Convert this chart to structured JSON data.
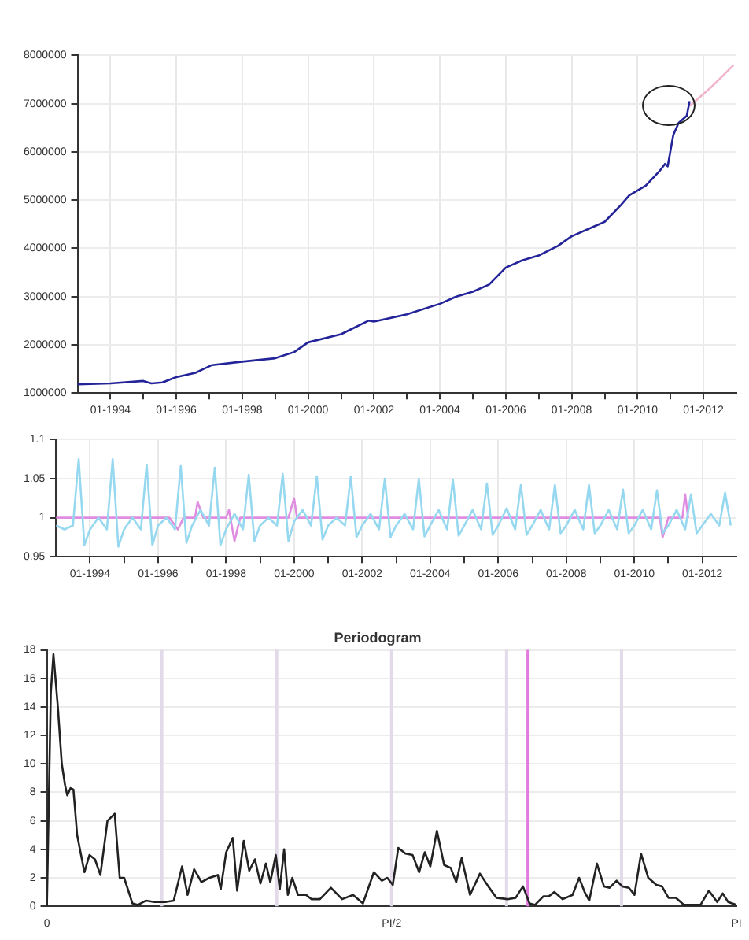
{
  "chart_data": [
    {
      "type": "line",
      "xlim": [
        "1993-01",
        "2013-01"
      ],
      "ylim": [
        1000000,
        8000000
      ],
      "grid": true,
      "xticks": [
        {
          "value": "1994-01",
          "label": "01-1994"
        },
        {
          "value": "1995-01",
          "label": null
        },
        {
          "value": "1996-01",
          "label": "01-1996"
        },
        {
          "value": "1997-01",
          "label": null
        },
        {
          "value": "1998-01",
          "label": "01-1998"
        },
        {
          "value": "1999-01",
          "label": null
        },
        {
          "value": "2000-01",
          "label": "01-2000"
        },
        {
          "value": "2001-01",
          "label": null
        },
        {
          "value": "2002-01",
          "label": "01-2002"
        },
        {
          "value": "2003-01",
          "label": null
        },
        {
          "value": "2004-01",
          "label": "01-2004"
        },
        {
          "value": "2005-01",
          "label": null
        },
        {
          "value": "2006-01",
          "label": "01-2006"
        },
        {
          "value": "2007-01",
          "label": null
        },
        {
          "value": "2008-01",
          "label": "01-2008"
        },
        {
          "value": "2009-01",
          "label": null
        },
        {
          "value": "2010-01",
          "label": "01-2010"
        },
        {
          "value": "2011-01",
          "label": null
        },
        {
          "value": "2012-01",
          "label": "01-2012"
        }
      ],
      "yticks": [
        1000000,
        2000000,
        3000000,
        4000000,
        5000000,
        6000000,
        7000000,
        8000000
      ],
      "series": [
        {
          "color": "#24249a",
          "x": [
            "1993-01",
            "1994-01",
            "1995-01",
            "1995-04",
            "1995-08",
            "1996-01",
            "1996-08",
            "1997-02",
            "1998-01",
            "1999-01",
            "1999-08",
            "2000-01",
            "2001-01",
            "2001-11",
            "2002-01",
            "2003-01",
            "2004-01",
            "2004-07",
            "2005-01",
            "2005-07",
            "2006-01",
            "2006-07",
            "2007-01",
            "2007-08",
            "2008-01",
            "2009-01",
            "2009-07",
            "2009-10",
            "2010-04",
            "2010-09",
            "2010-11",
            "2010-12",
            "2011-02",
            "2011-04",
            "2011-07",
            "2011-08"
          ],
          "values": [
            1180000,
            1200000,
            1250000,
            1200000,
            1220000,
            1330000,
            1420000,
            1580000,
            1650000,
            1720000,
            1850000,
            2050000,
            2220000,
            2500000,
            2480000,
            2630000,
            2850000,
            3000000,
            3100000,
            3250000,
            3600000,
            3750000,
            3850000,
            4050000,
            4250000,
            4550000,
            4900000,
            5100000,
            5300000,
            5600000,
            5750000,
            5700000,
            6350000,
            6600000,
            6750000,
            7050000
          ]
        },
        {
          "color": "#f0b4cc",
          "x": [
            "2011-08",
            "2012-04",
            "2012-12"
          ],
          "values": [
            6950000,
            7350000,
            7800000
          ]
        }
      ]
    },
    {
      "type": "line",
      "xlim": [
        "1993-01",
        "2013-01"
      ],
      "ylim": [
        0.95,
        1.1
      ],
      "grid": true,
      "xticks": [
        {
          "value": "1994-01",
          "label": "01-1994"
        },
        {
          "value": "1995-01",
          "label": null
        },
        {
          "value": "1996-01",
          "label": "01-1996"
        },
        {
          "value": "1997-01",
          "label": null
        },
        {
          "value": "1998-01",
          "label": "01-1998"
        },
        {
          "value": "1999-01",
          "label": null
        },
        {
          "value": "2000-01",
          "label": "01-2000"
        },
        {
          "value": "2001-01",
          "label": null
        },
        {
          "value": "2002-01",
          "label": "01-2002"
        },
        {
          "value": "2003-01",
          "label": null
        },
        {
          "value": "2004-01",
          "label": "01-2004"
        },
        {
          "value": "2005-01",
          "label": null
        },
        {
          "value": "2006-01",
          "label": "01-2006"
        },
        {
          "value": "2007-01",
          "label": null
        },
        {
          "value": "2008-01",
          "label": "01-2008"
        },
        {
          "value": "2009-01",
          "label": null
        },
        {
          "value": "2010-01",
          "label": "01-2010"
        },
        {
          "value": "2011-01",
          "label": null
        },
        {
          "value": "2012-01",
          "label": "01-2012"
        }
      ],
      "yticks": [
        0.95,
        1,
        1.05,
        1.1
      ],
      "series": [
        {
          "color": "#96d8f0",
          "x": [
            "1993-01",
            "1993-04",
            "1993-07",
            "1993-09",
            "1993-11",
            "1994-01",
            "1994-04",
            "1994-07",
            "1994-09",
            "1994-11",
            "1995-01",
            "1995-04",
            "1995-07",
            "1995-09",
            "1995-11",
            "1996-01",
            "1996-04",
            "1996-07",
            "1996-09",
            "1996-11",
            "1997-01",
            "1997-04",
            "1997-07",
            "1997-09",
            "1997-11",
            "1998-01",
            "1998-04",
            "1998-07",
            "1998-09",
            "1998-11",
            "1999-01",
            "1999-04",
            "1999-07",
            "1999-09",
            "1999-11",
            "2000-01",
            "2000-04",
            "2000-07",
            "2000-09",
            "2000-11",
            "2001-01",
            "2001-04",
            "2001-07",
            "2001-09",
            "2001-11",
            "2002-01",
            "2002-04",
            "2002-07",
            "2002-09",
            "2002-11",
            "2003-01",
            "2003-04",
            "2003-07",
            "2003-09",
            "2003-11",
            "2004-01",
            "2004-04",
            "2004-07",
            "2004-09",
            "2004-11",
            "2005-01",
            "2005-04",
            "2005-07",
            "2005-09",
            "2005-11",
            "2006-01",
            "2006-04",
            "2006-07",
            "2006-09",
            "2006-11",
            "2007-01",
            "2007-04",
            "2007-07",
            "2007-09",
            "2007-11",
            "2008-01",
            "2008-04",
            "2008-07",
            "2008-09",
            "2008-11",
            "2009-01",
            "2009-04",
            "2009-07",
            "2009-09",
            "2009-11",
            "2010-01",
            "2010-04",
            "2010-07",
            "2010-09",
            "2010-11",
            "2011-01",
            "2011-04",
            "2011-07",
            "2011-09",
            "2011-11",
            "2012-01",
            "2012-04",
            "2012-07",
            "2012-09",
            "2012-11"
          ],
          "values": [
            0.99,
            0.985,
            0.99,
            1.075,
            0.965,
            0.985,
            1.0,
            0.985,
            1.075,
            0.963,
            0.985,
            1.0,
            0.985,
            1.068,
            0.965,
            0.99,
            1.0,
            0.985,
            1.066,
            0.968,
            0.99,
            1.01,
            0.99,
            1.064,
            0.965,
            0.985,
            1.005,
            0.985,
            1.055,
            0.97,
            0.99,
            1.0,
            0.99,
            1.056,
            0.97,
            0.995,
            1.01,
            0.99,
            1.053,
            0.972,
            0.99,
            1.0,
            0.99,
            1.053,
            0.975,
            0.99,
            1.005,
            0.985,
            1.05,
            0.975,
            0.99,
            1.005,
            0.985,
            1.05,
            0.976,
            0.99,
            1.01,
            0.985,
            1.049,
            0.977,
            0.99,
            1.01,
            0.985,
            1.044,
            0.978,
            0.99,
            1.012,
            0.985,
            1.042,
            0.978,
            0.99,
            1.01,
            0.985,
            1.042,
            0.98,
            0.99,
            1.01,
            0.985,
            1.042,
            0.98,
            0.99,
            1.01,
            0.985,
            1.036,
            0.98,
            0.99,
            1.01,
            0.985,
            1.035,
            0.98,
            0.99,
            1.01,
            0.985,
            1.03,
            0.98,
            0.99,
            1.005,
            0.99,
            1.032,
            0.99
          ]
        },
        {
          "color": "#e08ce0",
          "x": [
            "1993-01",
            "1996-05",
            "1996-08",
            "1996-10",
            "1997-02",
            "1997-03",
            "1997-05",
            "1998-01",
            "1998-02",
            "1998-04",
            "1998-06",
            "1999-11",
            "2000-01",
            "2000-02",
            "2010-10",
            "2010-11",
            "2011-01",
            "2011-06",
            "2011-07",
            "2011-08"
          ],
          "values": [
            1,
            1,
            0.985,
            1,
            1,
            1.02,
            1,
            1,
            1.01,
            0.97,
            1,
            1,
            1.025,
            1,
            1,
            0.975,
            1,
            1,
            1.03,
            1
          ]
        }
      ]
    },
    {
      "type": "line",
      "title": "Periodogram",
      "xlim": [
        0,
        3.1416
      ],
      "ylim": [
        0,
        18
      ],
      "grid": "y",
      "xticks": [
        {
          "value": 0,
          "label": "0"
        },
        {
          "value": 1.5708,
          "label": "PI/2"
        },
        {
          "value": 3.1416,
          "label": "PI"
        }
      ],
      "yticks": [
        0,
        2,
        4,
        6,
        8,
        10,
        12,
        14,
        16,
        18
      ],
      "ref_lines": [
        {
          "axis": "x",
          "value": 0.5236,
          "color": "#e2dae8"
        },
        {
          "axis": "x",
          "value": 1.0472,
          "color": "#e2dae8"
        },
        {
          "axis": "x",
          "value": 1.5708,
          "color": "#e2dae8"
        },
        {
          "axis": "x",
          "value": 2.0944,
          "color": "#e2dae8"
        },
        {
          "axis": "x",
          "value": 2.618,
          "color": "#e2dae8"
        },
        {
          "axis": "x",
          "value": 2.192,
          "color": "#e07ce0"
        }
      ],
      "series": [
        {
          "color": "#222222",
          "x": [
            0,
            0.018,
            0.03,
            0.05,
            0.068,
            0.083,
            0.093,
            0.108,
            0.121,
            0.138,
            0.171,
            0.194,
            0.219,
            0.244,
            0.276,
            0.309,
            0.332,
            0.352,
            0.369,
            0.39,
            0.415,
            0.452,
            0.49,
            0.54,
            0.578,
            0.616,
            0.641,
            0.671,
            0.704,
            0.741,
            0.779,
            0.792,
            0.817,
            0.847,
            0.867,
            0.897,
            0.922,
            0.948,
            0.973,
            0.998,
            1.018,
            1.043,
            1.061,
            1.081,
            1.098,
            1.118,
            1.144,
            1.181,
            1.206,
            1.244,
            1.294,
            1.345,
            1.395,
            1.44,
            1.49,
            1.526,
            1.551,
            1.576,
            1.601,
            1.634,
            1.666,
            1.696,
            1.722,
            1.747,
            1.777,
            1.81,
            1.84,
            1.865,
            1.89,
            1.928,
            1.973,
            2.011,
            2.048,
            2.099,
            2.136,
            2.169,
            2.199,
            2.224,
            2.262,
            2.287,
            2.312,
            2.35,
            2.395,
            2.425,
            2.45,
            2.471,
            2.506,
            2.538,
            2.564,
            2.596,
            2.621,
            2.652,
            2.677,
            2.707,
            2.74,
            2.777,
            2.802,
            2.832,
            2.865,
            2.903,
            2.953,
            2.978,
            3.016,
            3.054,
            3.079,
            3.104,
            3.1416
          ],
          "values": [
            0,
            15,
            17.7,
            14,
            10,
            8.5,
            7.8,
            8.3,
            8.2,
            5,
            2.4,
            3.6,
            3.3,
            2.2,
            6,
            6.5,
            2,
            2,
            1.2,
            0.2,
            0.1,
            0.4,
            0.3,
            0.3,
            0.4,
            2.8,
            0.8,
            2.6,
            1.7,
            2,
            2.2,
            1.2,
            3.8,
            4.8,
            1.1,
            4.6,
            2.5,
            3.3,
            1.6,
            3,
            1.7,
            3.6,
            1.2,
            4,
            0.8,
            2,
            0.8,
            0.8,
            0.5,
            0.5,
            1.3,
            0.5,
            0.8,
            0.2,
            2.4,
            1.8,
            2,
            1.5,
            4.1,
            3.7,
            3.6,
            2.4,
            3.8,
            2.8,
            5.3,
            2.9,
            2.7,
            1.7,
            3.4,
            0.8,
            2.3,
            1.4,
            0.6,
            0.5,
            0.6,
            1.4,
            0.2,
            0.1,
            0.7,
            0.7,
            1,
            0.5,
            0.8,
            2,
            1,
            0.4,
            3,
            1.4,
            1.3,
            1.8,
            1.4,
            1.3,
            0.8,
            3.7,
            2,
            1.5,
            1.4,
            0.6,
            0.6,
            0.1,
            0.1,
            0.1,
            1.1,
            0.3,
            0.9,
            0.3,
            0.1
          ]
        }
      ]
    }
  ]
}
